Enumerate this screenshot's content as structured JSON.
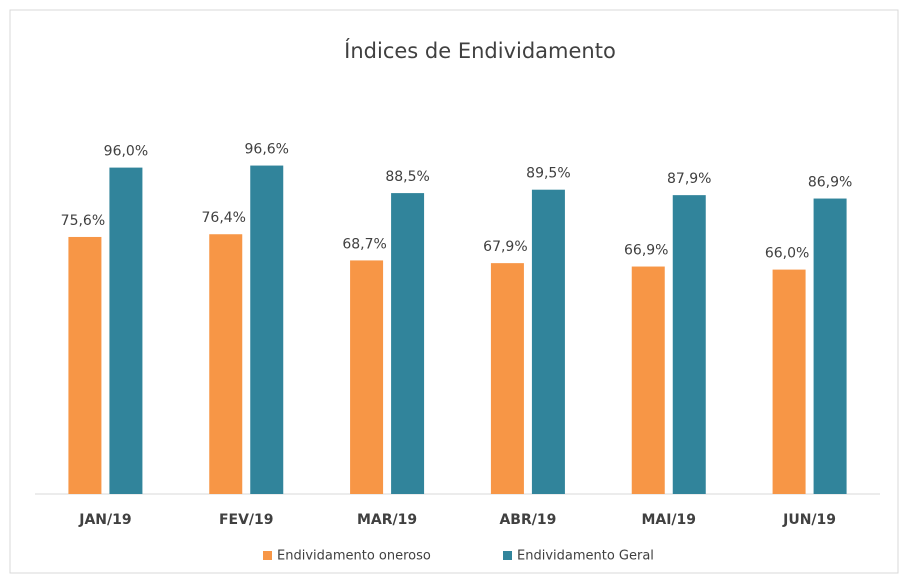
{
  "chart_data": {
    "type": "bar",
    "title": "Índices de Endividamento",
    "categories": [
      "JAN/19",
      "FEV/19",
      "MAR/19",
      "ABR/19",
      "MAI/19",
      "JUN/19"
    ],
    "series": [
      {
        "name": "Endividamento oneroso",
        "color": "#f79646",
        "values": [
          75.6,
          76.4,
          68.7,
          67.9,
          66.9,
          66.0
        ],
        "value_labels": [
          "75,6%",
          "76,4%",
          "68,7%",
          "67,9%",
          "66,9%",
          "66,0%"
        ]
      },
      {
        "name": "Endividamento Geral",
        "color": "#31849b",
        "values": [
          96.0,
          96.6,
          88.5,
          89.5,
          87.9,
          86.9
        ],
        "value_labels": [
          "96,0%",
          "96,6%",
          "88,5%",
          "89,5%",
          "87,9%",
          "86,9%"
        ]
      }
    ],
    "ylim": [
      0,
      100
    ],
    "legend": "bottom"
  }
}
